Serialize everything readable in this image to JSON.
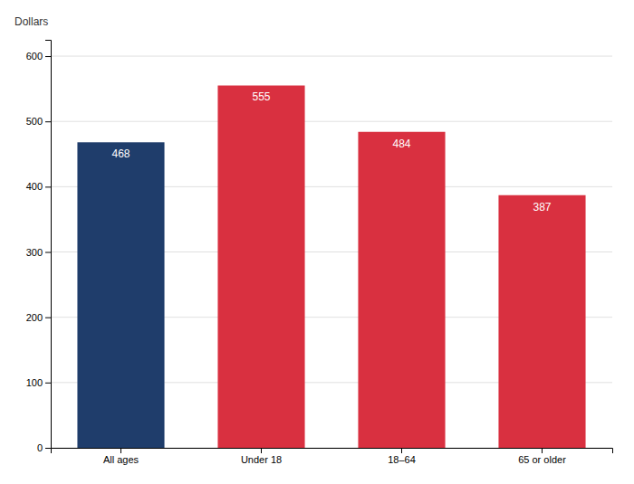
{
  "chart_data": {
    "type": "bar",
    "ylabel": "Dollars",
    "categories": [
      "All ages",
      "Under 18",
      "18–64",
      "65 or older"
    ],
    "values": [
      468,
      555,
      484,
      387
    ],
    "colors": [
      "#1f3d6b",
      "#d93040",
      "#d93040",
      "#d93040"
    ],
    "ylim": [
      0,
      625
    ],
    "yticks": [
      0,
      100,
      200,
      300,
      400,
      500,
      600
    ],
    "grid": true,
    "data_labels": true
  }
}
